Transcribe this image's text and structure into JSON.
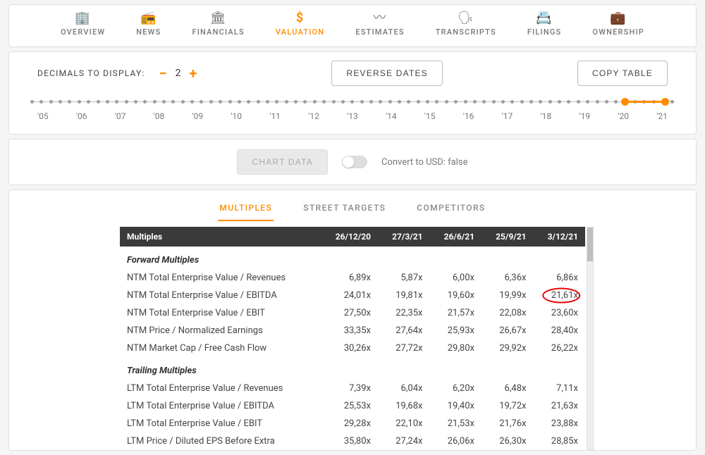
{
  "nav": {
    "items": [
      {
        "label": "OVERVIEW",
        "icon": "🏢"
      },
      {
        "label": "NEWS",
        "icon": "📻"
      },
      {
        "label": "FINANCIALS",
        "icon": "🏛"
      },
      {
        "label": "VALUATION",
        "icon": "$"
      },
      {
        "label": "ESTIMATES",
        "icon": "〰"
      },
      {
        "label": "TRANSCRIPTS",
        "icon": "🗣"
      },
      {
        "label": "FILINGS",
        "icon": "📇"
      },
      {
        "label": "OWNERSHIP",
        "icon": "💼"
      }
    ],
    "active_index": 3
  },
  "controls": {
    "decimals_label": "DECIMALS TO DISPLAY:",
    "decimals_value": "2",
    "reverse_dates": "REVERSE DATES",
    "copy_table": "COPY TABLE"
  },
  "timeline": {
    "years": [
      "'05",
      "'06",
      "'07",
      "'08",
      "'09",
      "'10",
      "'11",
      "'12",
      "'13",
      "'14",
      "'15",
      "'16",
      "'17",
      "'18",
      "'19",
      "'20",
      "'21"
    ],
    "minor_ticks_per_year": 4,
    "selection_start_pct": 92.2,
    "selection_end_pct": 98.5
  },
  "chart_row": {
    "chart_data_btn": "CHART DATA",
    "convert_label": "Convert to USD: false",
    "toggle_on": false
  },
  "subtabs": {
    "items": [
      "MULTIPLES",
      "STREET TARGETS",
      "COMPETITORS"
    ],
    "active_index": 0
  },
  "table": {
    "header_label": "Multiples",
    "columns": [
      "26/12/20",
      "27/3/21",
      "26/6/21",
      "25/9/21",
      "3/12/21"
    ],
    "highlight": {
      "row": 1,
      "col": 4
    },
    "highlight_color": "#e80000",
    "sections": [
      {
        "title": "Forward Multiples",
        "rows": [
          {
            "label": "NTM Total Enterprise Value / Revenues",
            "values": [
              "6,89x",
              "5,87x",
              "6,00x",
              "6,36x",
              "6,86x"
            ]
          },
          {
            "label": "NTM Total Enterprise Value / EBITDA",
            "values": [
              "24,01x",
              "19,81x",
              "19,60x",
              "19,99x",
              "21,61x"
            ]
          },
          {
            "label": "NTM Total Enterprise Value / EBIT",
            "values": [
              "27,50x",
              "22,35x",
              "21,57x",
              "22,08x",
              "23,60x"
            ]
          },
          {
            "label": "NTM Price / Normalized Earnings",
            "values": [
              "33,35x",
              "27,64x",
              "25,93x",
              "26,67x",
              "28,40x"
            ]
          },
          {
            "label": "NTM Market Cap / Free Cash Flow",
            "values": [
              "30,26x",
              "27,72x",
              "29,80x",
              "29,92x",
              "26,22x"
            ]
          }
        ]
      },
      {
        "title": "Trailing Multiples",
        "rows": [
          {
            "label": "LTM Total Enterprise Value / Revenues",
            "values": [
              "7,39x",
              "6,04x",
              "6,20x",
              "6,48x",
              "7,11x"
            ]
          },
          {
            "label": "LTM Total Enterprise Value / EBITDA",
            "values": [
              "25,53x",
              "19,68x",
              "19,40x",
              "19,72x",
              "21,63x"
            ]
          },
          {
            "label": "LTM Total Enterprise Value / EBIT",
            "values": [
              "29,28x",
              "22,10x",
              "21,53x",
              "21,76x",
              "23,88x"
            ]
          },
          {
            "label": "LTM Price / Diluted EPS Before Extra",
            "values": [
              "35,80x",
              "27,24x",
              "26,06x",
              "26,30x",
              "28,85x"
            ]
          }
        ]
      }
    ]
  }
}
